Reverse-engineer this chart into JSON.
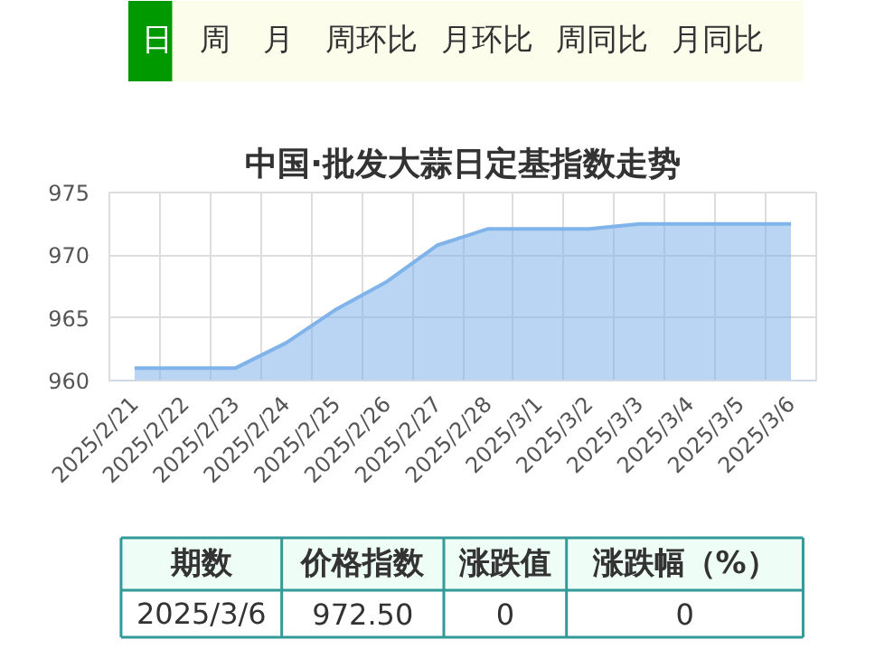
{
  "chart_data": [
    {
      "type": "other",
      "annotations": [
        "日",
        "周",
        "月",
        "周环比",
        "月环比",
        "周同比",
        "月同比"
      ]
    },
    {
      "type": "area",
      "title": "中国·批发大蒜日定基指数走势",
      "categories": [
        "2025/2/21",
        "2025/2/22",
        "2025/2/23",
        "2025/2/24",
        "2025/2/25",
        "2025/2/26",
        "2025/2/27",
        "2025/2/28",
        "2025/3/1",
        "2025/3/2",
        "2025/3/3",
        "2025/3/4",
        "2025/3/5",
        "2025/3/6"
      ],
      "series": [
        {
          "color": "#7fb3ea",
          "values": [
            961,
            961,
            961,
            963,
            965.7,
            967.9,
            970.8,
            972.1,
            972.1,
            972.1,
            972.5,
            972.5,
            972.5,
            972.5
          ]
        }
      ],
      "ylim": [
        960,
        975
      ],
      "yticks": [
        960,
        965,
        970,
        975
      ],
      "grid": true
    },
    {
      "type": "other",
      "annotations": [
        "期数",
        "价格指数",
        "涨跌值",
        "涨跌幅（%）",
        "2025/3/6",
        "972.50",
        "0",
        "0"
      ]
    }
  ]
}
